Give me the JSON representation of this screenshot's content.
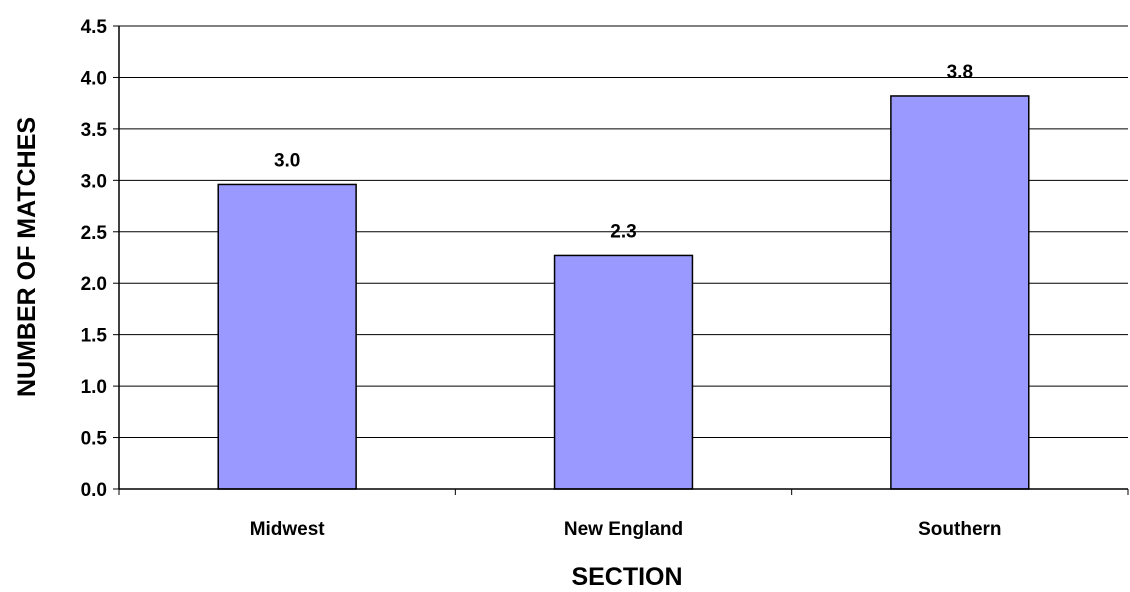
{
  "chart_data": {
    "type": "bar",
    "title": "",
    "xlabel": "SECTION",
    "ylabel": "NUMBER OF MATCHES",
    "categories": [
      "Midwest",
      "New England",
      "Southern"
    ],
    "values": [
      2.96,
      2.27,
      3.82
    ],
    "data_labels": [
      "3.0",
      "2.3",
      "3.8"
    ],
    "ylim": [
      0,
      4.5
    ],
    "yticks": [
      0,
      0.5,
      1.0,
      1.5,
      2.0,
      2.5,
      3.0,
      3.5,
      4.0,
      4.5
    ],
    "ytick_labels": [
      "0.0",
      "0.5",
      "1.0",
      "1.5",
      "2.0",
      "2.5",
      "3.0",
      "3.5",
      "4.0",
      "4.5"
    ],
    "grid": true,
    "legend": "none",
    "colors": {
      "bar_fill": "#9999ff",
      "bar_stroke": "#000000",
      "grid": "#000000"
    }
  }
}
